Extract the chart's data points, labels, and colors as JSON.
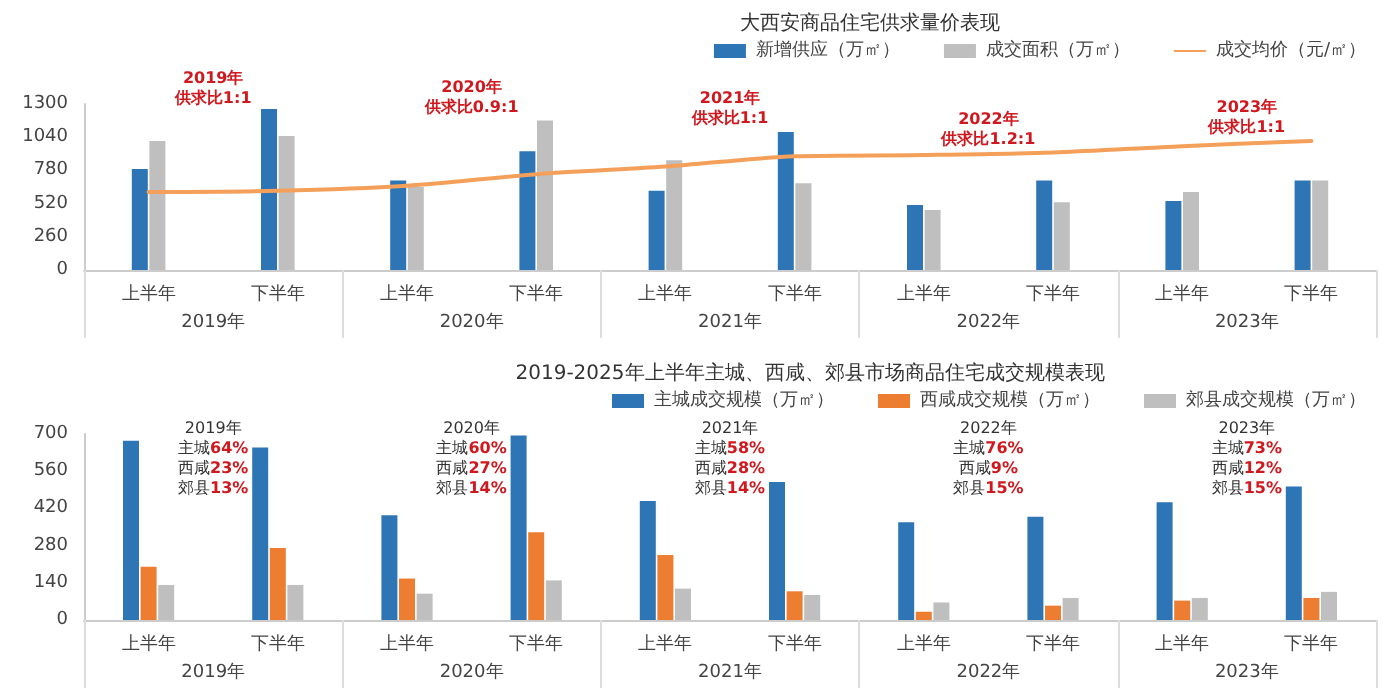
{
  "chart_data": [
    {
      "type": "bar",
      "title": "大西安商品住宅供求量价表现",
      "categories": [
        "上半年",
        "下半年",
        "上半年",
        "下半年",
        "上半年",
        "下半年",
        "上半年",
        "下半年",
        "上半年",
        "下半年"
      ],
      "series": [
        {
          "name": "新增供应（万㎡）",
          "color": "#2e75b6",
          "values": [
            790,
            1260,
            700,
            930,
            620,
            1080,
            510,
            700,
            540,
            700
          ]
        },
        {
          "name": "成交面积（万㎡）",
          "color": "#bfbfbf",
          "values": [
            1010,
            1050,
            650,
            1170,
            860,
            680,
            470,
            530,
            610,
            700
          ]
        },
        {
          "name": "成交均价（元/㎡）",
          "type": "line",
          "color": "#f4a05a",
          "marker": "none",
          "line_style": "solid",
          "values": [
            610,
            620,
            660,
            750,
            810,
            890,
            900,
            920,
            970,
            1010
          ]
        }
      ],
      "ylim": [
        0,
        1300
      ],
      "yticks": [
        0,
        260,
        520,
        780,
        1040,
        1300
      ],
      "grid": false,
      "legend": "top right",
      "annotations": [
        "2019年供求比1:1",
        "2020年供求比0.9:1",
        "2021年供求比1:1",
        "2022年供求比1.2:1",
        "2023年供求比1:1",
        "2019年",
        "2020年",
        "2021年",
        "2022年",
        "2023年"
      ]
    },
    {
      "type": "bar",
      "title": "2019-2025年上半年主城、西咸、郊县市场商品住宅成交规模表现",
      "categories": [
        "上半年",
        "下半年",
        "上半年",
        "下半年",
        "上半年",
        "下半年",
        "上半年",
        "下半年",
        "上半年",
        "下半年"
      ],
      "series": [
        {
          "name": "主城成交规模（万㎡）",
          "color": "#2e75b6",
          "values": [
            675,
            649,
            394,
            694,
            448,
            519,
            368,
            389,
            443,
            502
          ]
        },
        {
          "name": "西咸成交规模（万㎡）",
          "color": "#ed7d31",
          "values": [
            200,
            271,
            156,
            330,
            245,
            108,
            31,
            54,
            73,
            83
          ]
        },
        {
          "name": "郊县成交规模（万㎡）",
          "color": "#bfbfbf",
          "values": [
            132,
            132,
            99,
            149,
            118,
            94,
            66,
            83,
            83,
            106
          ]
        }
      ],
      "ylim": [
        0,
        700
      ],
      "yticks": [
        0,
        140,
        280,
        420,
        560,
        700
      ],
      "grid": false,
      "legend": "top right",
      "annotations": [
        "2019年主城64%西咸23%郊县13%",
        "2020年主城60%西咸27%郊县14%",
        "2021年主城58%西咸28%郊县14%",
        "2022年主城76%西咸9%郊县15%",
        "2023年主城73%西咸12%郊县15%",
        "2019年",
        "2020年",
        "2021年",
        "2022年",
        "2023年"
      ]
    }
  ]
}
